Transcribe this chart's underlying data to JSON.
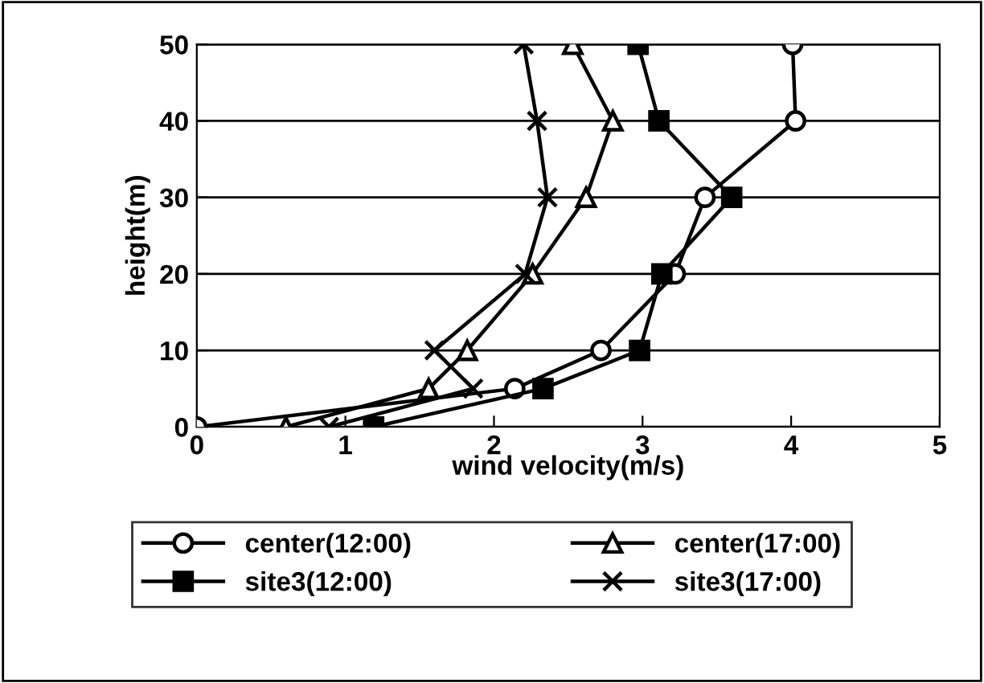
{
  "chart_data": {
    "type": "line",
    "xlabel": "wind velocity(m/s)",
    "ylabel": "height(m)",
    "xlim": [
      0,
      5
    ],
    "xticks": [
      0,
      1,
      2,
      3,
      4,
      5
    ],
    "ylim": [
      0,
      50
    ],
    "yticks": [
      0,
      10,
      20,
      30,
      40,
      50
    ],
    "grid": "y",
    "legend": "bottom",
    "line_style": "solid",
    "series": [
      {
        "name": "center(12:00)",
        "color": "#000000",
        "marker": "circle",
        "x": [
          0,
          2.14,
          2.72,
          3.22,
          3.42,
          4.03,
          4.01
        ],
        "values": [
          0,
          5,
          10,
          20,
          30,
          40,
          50
        ]
      },
      {
        "name": "site3(12:00)",
        "color": "#000000",
        "marker": "square",
        "x": [
          1.19,
          2.33,
          2.98,
          3.13,
          3.6,
          3.11,
          2.97
        ],
        "values": [
          0,
          5,
          10,
          20,
          30,
          40,
          50
        ]
      },
      {
        "name": "center(17:00)",
        "color": "#000000",
        "marker": "triangle",
        "x": [
          0.6,
          1.56,
          1.82,
          2.26,
          2.62,
          2.8,
          2.53
        ],
        "values": [
          0,
          5,
          10,
          20,
          30,
          40,
          50
        ]
      },
      {
        "name": "site3(17:00)",
        "color": "#000000",
        "marker": "cross",
        "x": [
          0.89,
          1.86,
          1.6,
          2.21,
          2.36,
          2.29,
          2.2
        ],
        "values": [
          0,
          5,
          10,
          20,
          30,
          40,
          50
        ]
      }
    ]
  }
}
